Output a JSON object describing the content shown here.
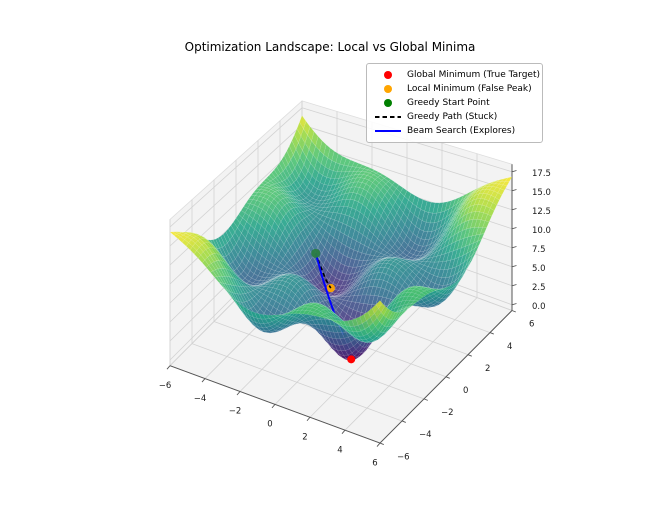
{
  "chart_data": {
    "type": "surface3d",
    "title": "Optimization Landscape: Local vs Global Minima",
    "colormap": "viridis",
    "x_range": [
      -6,
      6
    ],
    "y_range": [
      -6,
      6
    ],
    "z_range": [
      -0.75,
      18.5
    ],
    "x_ticks": [
      -6,
      -4,
      -2,
      0,
      2,
      4,
      6
    ],
    "y_ticks": [
      -6,
      -4,
      -2,
      0,
      2,
      4,
      6
    ],
    "z_ticks": [
      0,
      2.5,
      5,
      7.5,
      10,
      12.5,
      15,
      17.5
    ],
    "grid": true,
    "surface": {
      "description": "Rippled bowl landscape: paraboloid plus egg-carton ripples with one deepened well at the global minimum",
      "formula": "z = 0.17*(x^2+y^2) + 3*sin(x)*sin(y) - 2.2*exp(-((x-1.57)^2+(y+1.57)^2)/3.5) + 4.36",
      "params": {
        "bowl": 0.17,
        "ripple_amp": 3.0,
        "well_depth": 2.2,
        "well_cx": 1.57,
        "well_cy": -1.57,
        "well_width": 3.5,
        "offset": 4.36
      },
      "grid_n": 53,
      "alpha": 0.88
    },
    "markers": [
      {
        "name": "global-minimum",
        "label": "Global Minimum (True Target)",
        "color": "red",
        "x": 1.57,
        "y": -1.57,
        "z": 0.05,
        "behind_surface": false
      },
      {
        "name": "local-minimum",
        "label": "Local Minimum (False Peak)",
        "color": "orange",
        "x": -1.57,
        "y": 1.57,
        "z": 2.3,
        "behind_surface": true
      },
      {
        "name": "greedy-start",
        "label": "Greedy Start Point",
        "color": "green",
        "x": -2.2,
        "y": 1.2,
        "z": 7.0,
        "behind_surface": false
      }
    ],
    "paths": [
      {
        "name": "greedy-path",
        "label": "Greedy Path (Stuck)",
        "color": "black",
        "style": "dashed",
        "points": [
          [
            -2.2,
            1.2,
            7.0
          ],
          [
            -2.05,
            1.32,
            5.5
          ],
          [
            -1.92,
            1.42,
            4.3
          ],
          [
            -1.8,
            1.5,
            3.3
          ],
          [
            -1.68,
            1.55,
            2.7
          ],
          [
            -1.57,
            1.57,
            2.3
          ]
        ]
      },
      {
        "name": "beam-search",
        "label": "Beam Search (Explores)",
        "color": "blue",
        "style": "solid",
        "points": [
          [
            -2.2,
            1.2,
            7.0
          ],
          [
            -1.5,
            0.7,
            5.0
          ],
          [
            -0.8,
            0.2,
            3.5
          ],
          [
            -0.1,
            -0.35,
            2.5
          ],
          [
            0.6,
            -0.85,
            1.8
          ],
          [
            1.15,
            -1.25,
            0.9
          ],
          [
            1.57,
            -1.57,
            0.12
          ]
        ]
      }
    ],
    "legend": {
      "position": "upper right",
      "entries": [
        {
          "marker": "dot",
          "color": "red",
          "label": "Global Minimum (True Target)"
        },
        {
          "marker": "dot",
          "color": "orange",
          "label": "Local Minimum (False Peak)"
        },
        {
          "marker": "dot",
          "color": "green",
          "label": "Greedy Start Point"
        },
        {
          "marker": "dashed-line",
          "color": "black",
          "label": "Greedy Path (Stuck)"
        },
        {
          "marker": "solid-line",
          "color": "blue",
          "label": "Beam Search (Explores)"
        }
      ]
    }
  }
}
